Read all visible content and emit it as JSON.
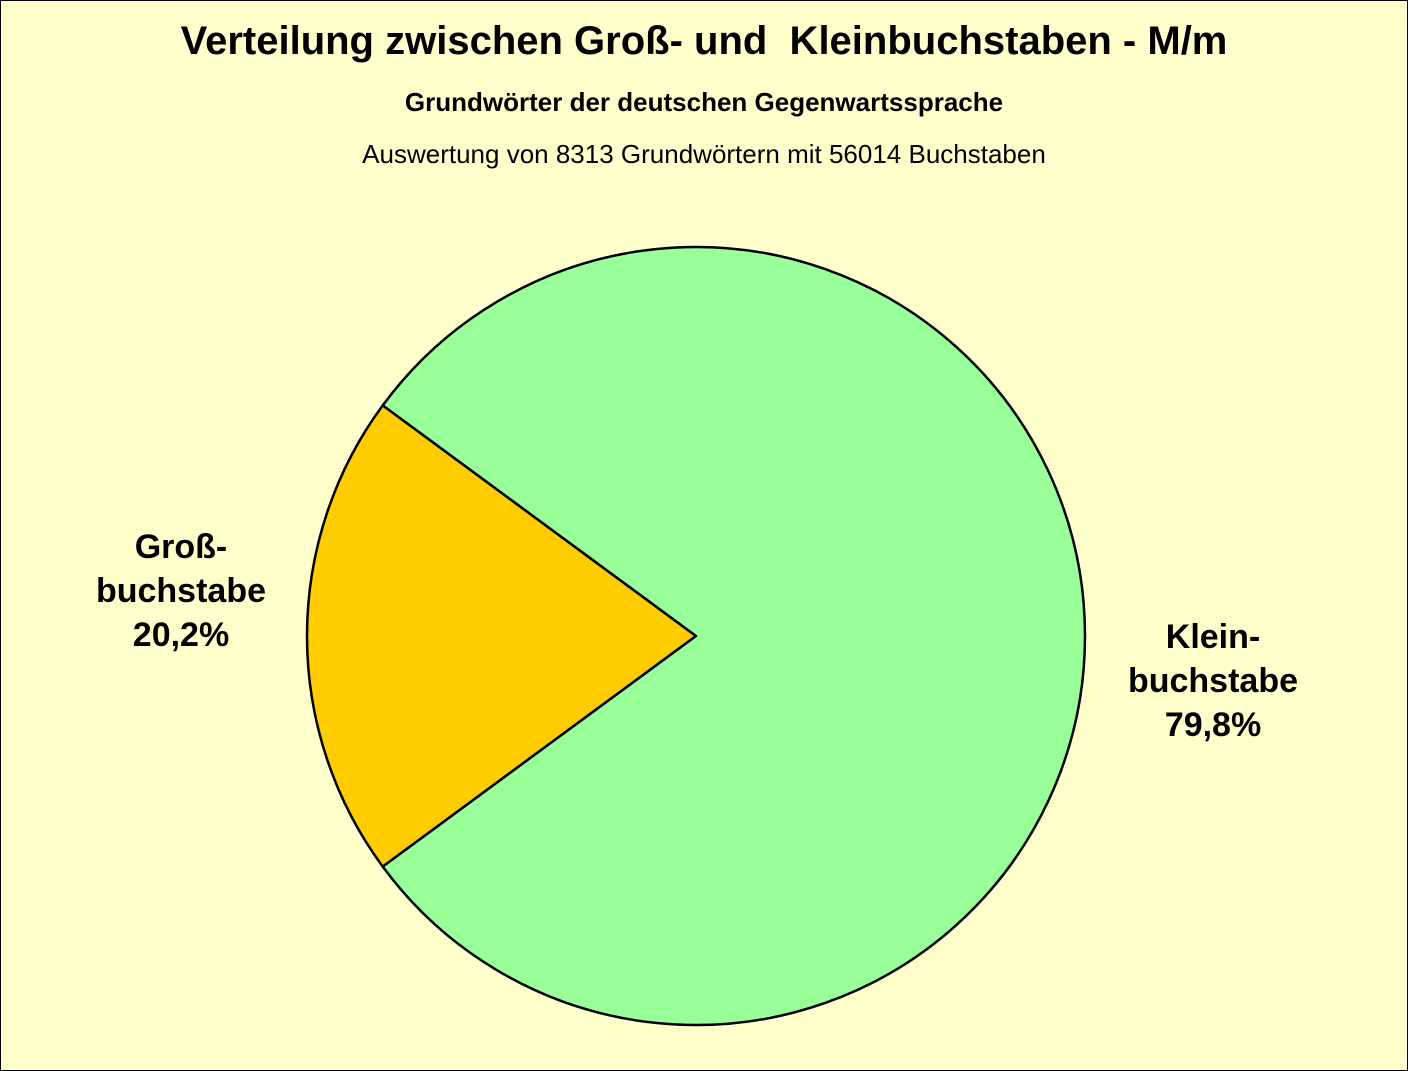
{
  "chart_data": {
    "type": "pie",
    "title": "Verteilung zwischen Groß- und  Kleinbuchstaben - M/m",
    "subtitle": "Grundwörter der deutschen Gegenwartssprache",
    "note": "Auswertung von 8313 Grundwörtern mit 56014 Buchstaben",
    "slices": [
      {
        "label_lines": [
          "Groß-",
          "buchstabe"
        ],
        "value": 20.2,
        "value_label": "20,2%",
        "color": "#ffcc00"
      },
      {
        "label_lines": [
          "Klein-",
          "buchstabe"
        ],
        "value": 79.8,
        "value_label": "79,8%",
        "color": "#99ff99"
      }
    ],
    "legend": "none"
  },
  "colors": {
    "background": "#ffffcc",
    "outline": "#000000"
  }
}
